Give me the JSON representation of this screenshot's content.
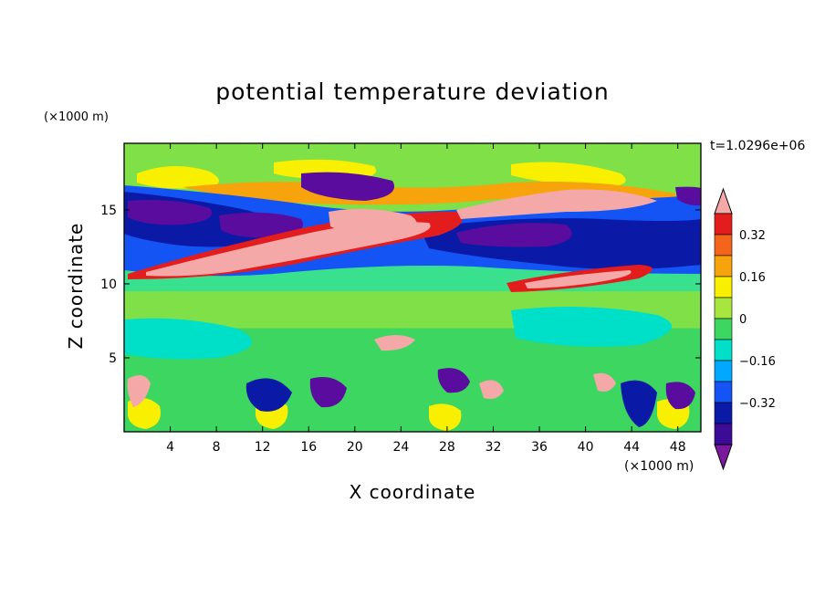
{
  "chart_data": {
    "type": "heatmap",
    "title": "potential temperature deviation",
    "xlabel": "X coordinate",
    "ylabel": "Z coordinate",
    "x_unit": "(×1000 m)",
    "y_unit": "(×1000 m)",
    "time_label": "t=1.0296e+06",
    "xlim": [
      0,
      50
    ],
    "ylim": [
      0,
      19.5
    ],
    "x_ticks": [
      4,
      8,
      12,
      16,
      20,
      24,
      28,
      32,
      36,
      40,
      44,
      48
    ],
    "y_ticks": [
      5,
      10,
      15
    ],
    "colorbar": {
      "levels": [
        -0.48,
        -0.4,
        -0.32,
        -0.24,
        -0.16,
        -0.08,
        0,
        0.08,
        0.16,
        0.24,
        0.32,
        0.4,
        0.48
      ],
      "labeled": [
        0.32,
        0.16,
        0,
        -0.16,
        -0.32
      ],
      "tick_labels": [
        "0.32",
        "0.16",
        "0",
        "−0.16",
        "−0.32"
      ],
      "colors_top_to_bottom": [
        "#f4a8a8",
        "#e31d1d",
        "#f4641a",
        "#f7a30c",
        "#f8f000",
        "#a7e63f",
        "#3dd660",
        "#00e0c8",
        "#00a8ff",
        "#1454f4",
        "#0a1aa6",
        "#3c0c96",
        "#7a189e"
      ]
    },
    "field_colors": {
      "background": "#7fe048",
      "neg_strong": "#5a0c9e",
      "neg_dark": "#0a1aa6",
      "neg_blue": "#1454f4",
      "neg_light": "#00a8ff",
      "neg_cyan": "#00e0c8",
      "near_zero": "#3dd660",
      "pos_light": "#a7e63f",
      "pos_yellow": "#f8f000",
      "pos_orange": "#f7a30c",
      "pos_red": "#e31d1d",
      "pos_pink": "#f4a8a8"
    }
  }
}
